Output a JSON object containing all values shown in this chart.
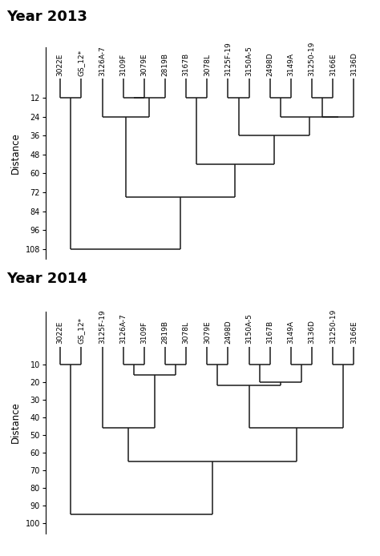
{
  "title1": "Year 2013",
  "title2": "Year 2014",
  "labels2013": [
    "3022E",
    "GS_12*",
    "3126A-7",
    "3109F",
    "3079E",
    "2819B",
    "3167B",
    "3078L",
    "3125F-19",
    "3150A-5",
    "2498D",
    "3149A",
    "31250-19",
    "3166E",
    "3136D"
  ],
  "labels2014": [
    "3022E",
    "GS_12*",
    "3125F-19",
    "3126A-7",
    "3109F",
    "2819B",
    "3078L",
    "3079E",
    "2498D",
    "3150A-5",
    "3167B",
    "3149A",
    "3136D",
    "31250-19",
    "3166E"
  ],
  "yticks2013": [
    12,
    24,
    36,
    48,
    60,
    72,
    84,
    96,
    108
  ],
  "yticks2014": [
    10,
    20,
    30,
    40,
    50,
    60,
    70,
    80,
    90,
    100
  ],
  "ylabel": "Distance",
  "background": "#ffffff",
  "linecolor": "#1a1a1a",
  "lw": 1.1,
  "title_fontsize": 13,
  "label_fontsize": 6.5,
  "tick_fontsize": 7
}
